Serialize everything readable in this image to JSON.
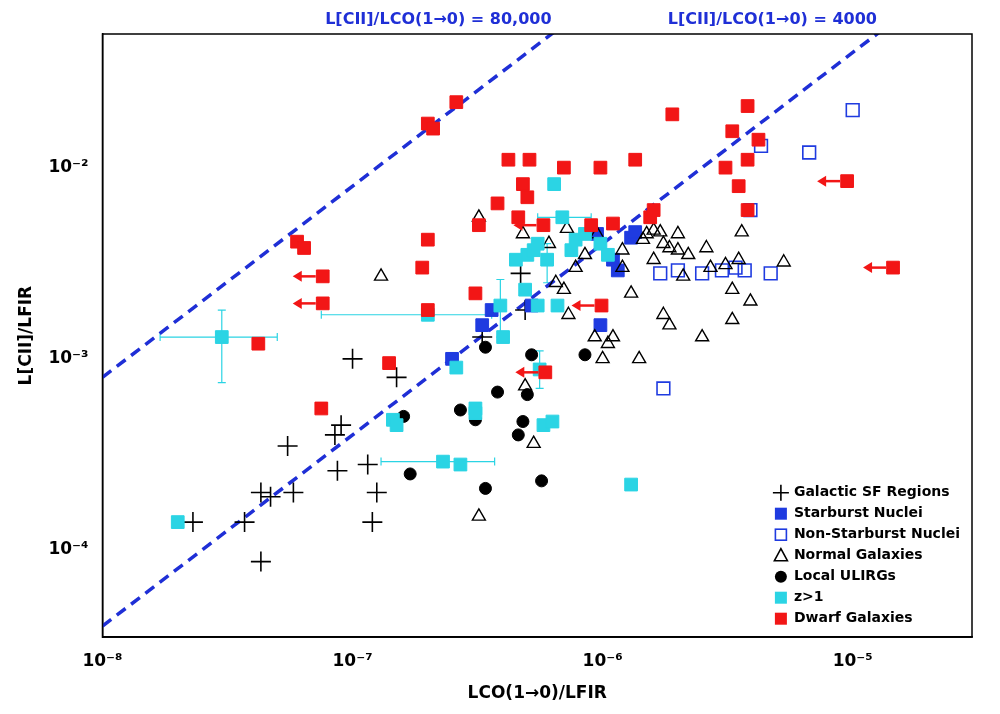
{
  "chart_data": {
    "type": "scatter",
    "xlabel": "LCO(1→0)/LFIR",
    "ylabel": "L[CII]/LFIR",
    "log": true,
    "grid": false,
    "legend": "lower right",
    "xlim": [
      1e-08,
      3e-05
    ],
    "ylim": [
      3.5e-05,
      0.05
    ],
    "xticks": [
      {
        "value": 1e-08,
        "label": "10⁻⁸"
      },
      {
        "value": 1e-07,
        "label": "10⁻⁷"
      },
      {
        "value": 1e-06,
        "label": "10⁻⁶"
      },
      {
        "value": 1e-05,
        "label": "10⁻⁵"
      }
    ],
    "yticks": [
      {
        "value": 0.0001,
        "label": "10⁻⁴"
      },
      {
        "value": 0.001,
        "label": "10⁻³"
      },
      {
        "value": 0.01,
        "label": "10⁻²"
      }
    ],
    "annotations": [
      {
        "text": "L[CII]/LCO(1→0) = 80,000",
        "ratio": 80000,
        "color": "#1f2fd6",
        "line_style": "dashed"
      },
      {
        "text": "L[CII]/LCO(1→0) = 4000",
        "ratio": 4000,
        "color": "#1f2fd6",
        "line_style": "dashed"
      }
    ],
    "series": [
      {
        "name": "Galactic SF Regions",
        "color": "#000000",
        "marker": "plus",
        "x": [
          2.3e-08,
          3.7e-08,
          4.3e-08,
          4.3e-08,
          4.7e-08,
          5.5e-08,
          5.8e-08,
          8.5e-08,
          8.7e-08,
          9e-08,
          1e-07,
          1.15e-07,
          1.2e-07,
          1.25e-07,
          1.5e-07,
          4.7e-07,
          4.9e-07,
          3.3e-07
        ],
        "values": [
          0.00014,
          0.00014,
          8.7e-05,
          0.0002,
          0.00019,
          0.00035,
          0.0002,
          0.0004,
          0.00026,
          0.00045,
          0.001,
          0.00028,
          0.00014,
          0.0002,
          0.0008,
          0.0028,
          0.0018,
          0.0013
        ]
      },
      {
        "name": "Starburst Nuclei",
        "color": "#1f3be0",
        "marker": "square",
        "x": [
          2.5e-07,
          3.3e-07,
          3.6e-07,
          5.2e-07,
          9.8e-07,
          9.5e-07,
          1.1e-06,
          1.15e-06,
          1.3e-06,
          1.35e-06
        ],
        "values": [
          0.001,
          0.0015,
          0.0018,
          0.0019,
          0.0015,
          0.0045,
          0.0033,
          0.0029,
          0.0043,
          0.0046
        ]
      },
      {
        "name": "Non-Starburst Nuclei",
        "color": "#1f3be0",
        "marker": "open_square",
        "x": [
          1e-05,
          4.3e-06,
          6.7e-06,
          3.9e-06,
          1.75e-06,
          1.7e-06,
          2e-06,
          2.5e-06,
          3e-06,
          3.4e-06,
          3.7e-06,
          4.7e-06
        ],
        "values": [
          0.02,
          0.013,
          0.012,
          0.006,
          0.0007,
          0.0028,
          0.0029,
          0.0028,
          0.0029,
          0.003,
          0.0029,
          0.0028
        ]
      },
      {
        "name": "Normal Galaxies",
        "color": "#000000",
        "marker": "open_triangle",
        "x": [
          3.2e-07,
          4.8e-07,
          6.1e-07,
          7.2e-07,
          9.5e-07,
          1.3e-07,
          6.5e-07,
          7e-07,
          7.3e-07,
          7.8e-07,
          8.5e-07,
          1e-06,
          1.05e-06,
          1.1e-06,
          9.3e-07,
          1.2e-06,
          1.2e-06,
          1.3e-06,
          1.4e-06,
          1.45e-06,
          1.5e-06,
          1.6e-06,
          1.7e-06,
          1.75e-06,
          1.85e-06,
          1.6e-06,
          1.75e-06,
          1.85e-06,
          2e-06,
          2e-06,
          2.2e-06,
          2.1e-06,
          2.6e-06,
          2.5e-06,
          2.7e-06,
          3.1e-06,
          3.3e-06,
          3.3e-06,
          3.5e-06,
          3.9e-06,
          5.3e-06,
          4.9e-07,
          5.3e-07,
          3.2e-07,
          3.6e-06
        ],
        "values": [
          0.0055,
          0.0045,
          0.004,
          0.0048,
          0.0045,
          0.0027,
          0.0025,
          0.0023,
          0.0017,
          0.003,
          0.0035,
          0.001,
          0.0012,
          0.0013,
          0.0013,
          0.003,
          0.0037,
          0.0022,
          0.001,
          0.0042,
          0.0045,
          0.0047,
          0.0046,
          0.004,
          0.0038,
          0.0033,
          0.0017,
          0.0015,
          0.0045,
          0.0037,
          0.0035,
          0.0027,
          0.0038,
          0.0013,
          0.003,
          0.0031,
          0.0016,
          0.0023,
          0.0033,
          0.002,
          0.0032,
          0.00072,
          0.00036,
          0.00015,
          0.0046
        ]
      },
      {
        "name": "Local ULIRGs",
        "color": "#000000",
        "marker": "circle",
        "x": [
          1.7e-07,
          2.7e-07,
          3.1e-07,
          3.4e-07,
          3.4e-07,
          3.8e-07,
          4.6e-07,
          4.8e-07,
          5e-07,
          5.2e-07,
          5.7e-07,
          8.5e-07,
          1.6e-07
        ],
        "values": [
          0.00025,
          0.00054,
          0.00048,
          0.00021,
          0.00115,
          0.00067,
          0.0004,
          0.00047,
          0.00065,
          0.00105,
          0.00023,
          0.00105,
          0.0005
        ]
      },
      {
        "name": "z>1",
        "color": "#2bd4e4",
        "marker": "square",
        "x": [
          2e-08,
          3e-08,
          1.45e-07,
          1.5e-07,
          2e-07,
          2.3e-07,
          2.7e-07,
          2.6e-07,
          3.1e-07,
          3.1e-07,
          3.9e-07,
          4e-07,
          4.9e-07,
          5e-07,
          5.3e-07,
          5.5e-07,
          5.6e-07,
          5.8e-07,
          6.3e-07,
          6.4e-07,
          6.6e-07,
          6.9e-07,
          7.5e-07,
          7.8e-07,
          8.5e-07,
          9.8e-07,
          1.05e-06,
          1.3e-06,
          4.5e-07,
          5.5e-07,
          6e-07
        ],
        "values": [
          0.00014,
          0.0013,
          0.00048,
          0.00045,
          0.0017,
          0.00029,
          0.00028,
          0.0009,
          0.00055,
          0.00052,
          0.0019,
          0.0013,
          0.0023,
          0.0035,
          0.0037,
          0.004,
          0.00088,
          0.00045,
          0.00047,
          0.0082,
          0.0019,
          0.0055,
          0.0037,
          0.0042,
          0.0045,
          0.004,
          0.0035,
          0.00022,
          0.0033,
          0.0019,
          0.0033
        ],
        "x_err": [
          null,
          [
            1.7e-08,
            5e-08
          ],
          null,
          null,
          [
            7.5e-08,
            3.6e-07
          ],
          [
            1.3e-07,
            3.7e-07
          ],
          null,
          null,
          null,
          null,
          null,
          null,
          null,
          null,
          null,
          null,
          null,
          null,
          null,
          null,
          null,
          [
            5.5e-07,
            9e-07
          ],
          null,
          null,
          null,
          null,
          null,
          null,
          null,
          null,
          null
        ],
        "y_err": [
          null,
          [
            0.00075,
            0.0018
          ],
          null,
          null,
          null,
          null,
          null,
          null,
          null,
          null,
          [
            0.0013,
            0.0026
          ],
          null,
          null,
          null,
          null,
          null,
          [
            0.0007,
            0.0011
          ],
          null,
          null,
          null,
          null,
          null,
          null,
          null,
          null,
          null,
          null,
          null,
          null,
          null,
          [
            0.0025,
            0.004
          ]
        ]
      },
      {
        "name": "Dwarf Galaxies",
        "color": "#f21616",
        "marker": "square",
        "x": [
          2.6e-07,
          2e-07,
          2.1e-07,
          1.9e-06,
          3.8e-06,
          4.2e-06,
          3.3e-06,
          3.8e-06,
          4.2e-07,
          5.1e-07,
          7e-07,
          9.8e-07,
          1.35e-06,
          3.1e-06,
          3.5e-06,
          3.8e-06,
          1.1e-06,
          1.55e-06,
          1.6e-06,
          4.8e-07,
          5e-07,
          3.8e-07,
          5.8e-07,
          3.2e-07,
          4.6e-07,
          9e-07,
          2e-07,
          6e-08,
          6.4e-08,
          1.9e-07,
          3.1e-07,
          2e-07,
          7.6e-08,
          7.6e-08,
          1.4e-07,
          4.2e-08,
          7.5e-08,
          5.9e-07,
          9.9e-07,
          9.5e-06,
          1.45e-05
        ],
        "values": [
          0.022,
          0.017,
          0.016,
          0.019,
          0.021,
          0.014,
          0.0155,
          0.011,
          0.011,
          0.011,
          0.01,
          0.01,
          0.011,
          0.01,
          0.008,
          0.006,
          0.0051,
          0.0055,
          0.006,
          0.0082,
          0.007,
          0.0065,
          0.005,
          0.005,
          0.0055,
          0.005,
          0.0042,
          0.0041,
          0.0038,
          0.003,
          0.0022,
          0.0018,
          0.0027,
          0.00195,
          0.00095,
          0.0012,
          0.00055,
          0.00085,
          0.0019,
          0.0085,
          0.003
        ],
        "x_upper_limit": [
          false,
          false,
          false,
          false,
          false,
          false,
          false,
          false,
          false,
          false,
          false,
          false,
          false,
          false,
          false,
          false,
          false,
          false,
          false,
          false,
          false,
          false,
          true,
          false,
          false,
          false,
          false,
          false,
          false,
          false,
          false,
          false,
          true,
          true,
          false,
          false,
          false,
          true,
          true,
          true,
          true
        ]
      }
    ]
  }
}
